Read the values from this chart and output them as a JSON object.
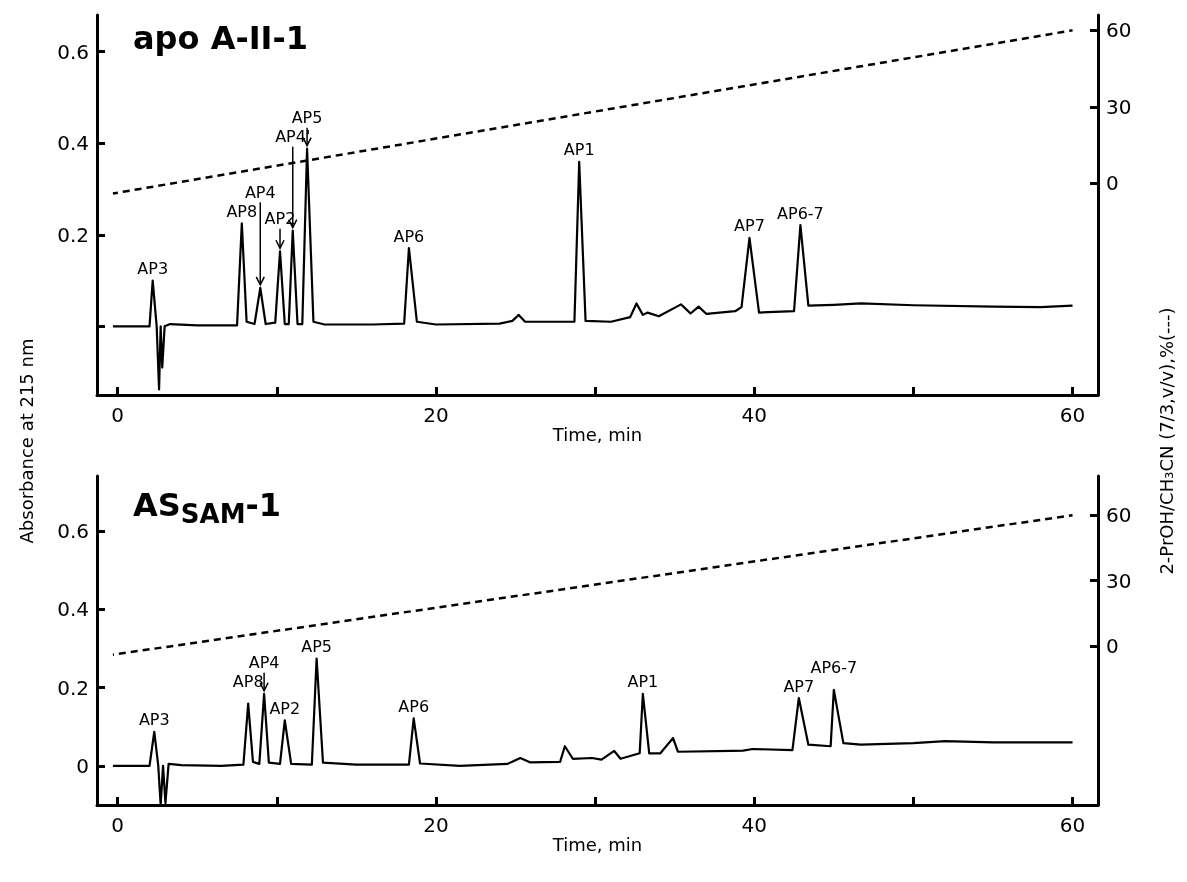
{
  "chart_data": [
    {
      "type": "line",
      "title": "apo A-II-1",
      "xlabel": "Time, min",
      "ylabel": "Absorbance at 215 nm",
      "marker": "none",
      "grid": false,
      "xlim": [
        -1.3,
        61.6
      ],
      "xticks": [
        0,
        {
          "value": 10,
          "label": null
        },
        20,
        {
          "value": 30,
          "label": null
        },
        40,
        {
          "value": 50,
          "label": null
        },
        60
      ],
      "ylim": [
        -0.15,
        0.68
      ],
      "yticks": [
        {
          "value": 0,
          "label": null
        },
        0.2,
        0.4,
        0.6
      ],
      "y2lim": [
        -83,
        66
      ],
      "y2ticks": [
        0,
        30,
        60
      ],
      "series": [
        {
          "color": "#000000",
          "line_style": "solid",
          "x": [
            -0.3,
            2.0,
            2.2,
            2.45,
            2.6,
            2.7,
            2.8,
            2.95,
            3.3,
            5,
            7.5,
            7.8,
            8.1,
            8.6,
            8.96,
            9.3,
            9.9,
            10.2,
            10.5,
            10.75,
            11.0,
            11.3,
            11.6,
            11.9,
            12.3,
            13,
            16,
            18.0,
            18.3,
            18.8,
            20,
            24,
            24.8,
            25.2,
            25.6,
            28.7,
            29.0,
            29.4,
            31,
            32.2,
            32.6,
            33.0,
            33.3,
            34,
            35.4,
            36,
            36.5,
            37,
            38.8,
            39.2,
            39.7,
            40.3,
            42.5,
            42.9,
            43.4,
            45,
            46.7,
            50,
            55,
            58,
            60
          ],
          "values": [
            0,
            0,
            0.1,
            0,
            -0.138,
            0,
            -0.09,
            0,
            0.005,
            0.002,
            0.002,
            0.225,
            0.01,
            0.005,
            0.084,
            0.005,
            0.008,
            0.164,
            0.005,
            0.005,
            0.209,
            0.005,
            0.005,
            0.388,
            0.01,
            0.004,
            0.004,
            0.006,
            0.171,
            0.01,
            0.004,
            0.006,
            0.012,
            0.025,
            0.01,
            0.01,
            0.359,
            0.012,
            0.01,
            0.02,
            0.05,
            0.025,
            0.03,
            0.022,
            0.048,
            0.028,
            0.043,
            0.027,
            0.033,
            0.042,
            0.193,
            0.03,
            0.033,
            0.221,
            0.045,
            0.047,
            0.05,
            0.046,
            0.043,
            0.042,
            0.045
          ]
        },
        {
          "color": "#000000",
          "line_style": "dashed",
          "axis": "y2",
          "x": [
            -0.3,
            60
          ],
          "values": [
            -4,
            60
          ]
        }
      ],
      "annotations": [
        {
          "text": "AP3",
          "x": 2.2,
          "y": 0.1
        },
        {
          "text": "AP8",
          "x": 7.8,
          "y": 0.225
        },
        {
          "text": "AP4",
          "x": 8.96,
          "y": 0.084
        },
        {
          "text": "AP2",
          "x": 10.2,
          "y": 0.164
        },
        {
          "text": "AP4'",
          "x": 11.0,
          "y": 0.209
        },
        {
          "text": "AP5",
          "x": 11.9,
          "y": 0.388
        },
        {
          "text": "AP6",
          "x": 18.3,
          "y": 0.171
        },
        {
          "text": "AP1",
          "x": 29.0,
          "y": 0.359
        },
        {
          "text": "AP7",
          "x": 39.7,
          "y": 0.193
        },
        {
          "text": "AP6-7",
          "x": 42.9,
          "y": 0.221
        }
      ]
    },
    {
      "type": "line",
      "title": "AS$_{SAM}$-1",
      "xlabel": "Time, min",
      "y2label": "2-PrOH/CH₃CN (7/3,v/v),%(---)",
      "marker": "none",
      "grid": false,
      "xlim": [
        -1.3,
        61.6
      ],
      "xticks": [
        0,
        {
          "value": 10,
          "label": null
        },
        20,
        {
          "value": 30,
          "label": null
        },
        40,
        {
          "value": 50,
          "label": null
        },
        60
      ],
      "ylim": [
        -0.1,
        0.74
      ],
      "yticks": [
        0,
        0.2,
        0.4,
        0.6
      ],
      "y2lim": [
        -73,
        78
      ],
      "y2ticks": [
        0,
        30,
        60
      ],
      "series": [
        {
          "color": "#000000",
          "line_style": "solid",
          "x": [
            -0.3,
            2.0,
            2.3,
            2.55,
            2.7,
            2.85,
            3.0,
            3.2,
            4,
            6.5,
            7.9,
            8.2,
            8.5,
            8.9,
            9.2,
            9.5,
            10.2,
            10.5,
            10.9,
            12.2,
            12.5,
            12.9,
            15,
            18.3,
            18.6,
            19.0,
            21.5,
            24.5,
            25.3,
            25.9,
            27.8,
            28.1,
            28.6,
            29.8,
            30.4,
            31.2,
            31.6,
            32.8,
            33.0,
            33.4,
            34.1,
            34.9,
            35.2,
            38.6,
            39.3,
            39.9,
            42.4,
            42.8,
            43.4,
            44.8,
            45.0,
            45.6,
            46.7,
            50,
            52,
            55,
            60
          ],
          "values": [
            0,
            0,
            0.087,
            0,
            -0.1,
            0,
            -0.095,
            0.005,
            0.002,
            0,
            0.003,
            0.159,
            0.01,
            0.005,
            0.184,
            0.008,
            0.005,
            0.116,
            0.005,
            0.003,
            0.274,
            0.008,
            0.003,
            0.003,
            0.121,
            0.006,
            0,
            0.005,
            0.02,
            0.009,
            0.01,
            0.05,
            0.018,
            0.02,
            0.016,
            0.038,
            0.018,
            0.032,
            0.184,
            0.032,
            0.032,
            0.071,
            0.036,
            0.038,
            0.039,
            0.043,
            0.04,
            0.173,
            0.054,
            0.05,
            0.194,
            0.058,
            0.054,
            0.058,
            0.063,
            0.06,
            0.06
          ]
        },
        {
          "color": "#000000",
          "line_style": "dashed",
          "axis": "y2",
          "x": [
            -0.3,
            60
          ],
          "values": [
            -4,
            60
          ]
        }
      ],
      "annotations": [
        {
          "text": "AP3",
          "x": 2.3,
          "y": 0.087
        },
        {
          "text": "AP8",
          "x": 8.2,
          "y": 0.159
        },
        {
          "text": "AP4",
          "x": 9.2,
          "y": 0.184
        },
        {
          "text": "AP2",
          "x": 10.5,
          "y": 0.116
        },
        {
          "text": "AP5",
          "x": 12.5,
          "y": 0.274
        },
        {
          "text": "AP6",
          "x": 18.6,
          "y": 0.121
        },
        {
          "text": "AP1",
          "x": 33.0,
          "y": 0.184
        },
        {
          "text": "AP7",
          "x": 42.8,
          "y": 0.173
        },
        {
          "text": "AP6-7",
          "x": 45.0,
          "y": 0.194
        }
      ]
    }
  ]
}
